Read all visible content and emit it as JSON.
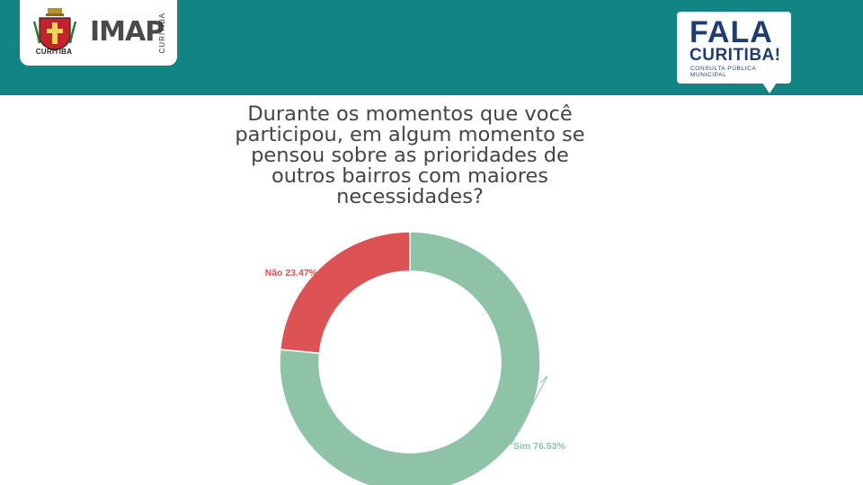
{
  "header": {
    "left_logo": {
      "crest_caption": "CURITIBA",
      "imap_text": "IMAP",
      "imap_side_text": "CURITIBA"
    },
    "right_logo": {
      "line1": "FALA",
      "line2": "CURITIBA!",
      "line3": "CONSULTA PÚBLICA MUNICIPAL"
    },
    "background_color": "#128484"
  },
  "chart_data": {
    "type": "pie",
    "title_lines": [
      "Durante os momentos que você",
      "participou, em algum momento se",
      "pensou sobre as prioridades de",
      "outros bairros com maiores",
      "necessidades?"
    ],
    "donut": true,
    "slices": [
      {
        "label": "Sim",
        "value": 76.53,
        "display": "Sim 76.53%",
        "color": "#8fc3a8"
      },
      {
        "label": "Não",
        "value": 23.47,
        "display": "Não 23.47%",
        "color": "#dd5255"
      }
    ]
  }
}
